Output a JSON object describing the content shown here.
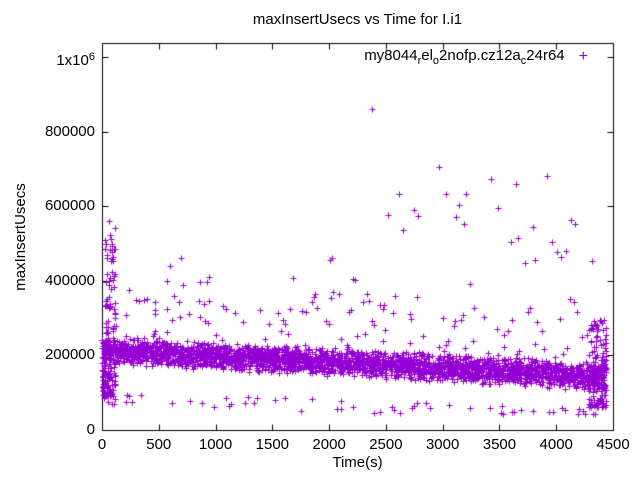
{
  "chart_data": {
    "type": "scatter",
    "title": "maxInsertUsecs vs Time for I.i1",
    "xlabel": "Time(s)",
    "ylabel": "maxInsertUsecs",
    "xlim": [
      0,
      4500
    ],
    "ylim": [
      0,
      1000000
    ],
    "xticks": [
      0,
      500,
      1000,
      1500,
      2000,
      2500,
      3000,
      3500,
      4000,
      4500
    ],
    "yticks": [
      {
        "v": 0,
        "label": "0"
      },
      {
        "v": 200000,
        "label": "200000"
      },
      {
        "v": 400000,
        "label": "400000"
      },
      {
        "v": 600000,
        "label": "600000"
      },
      {
        "v": 800000,
        "label": "800000"
      },
      {
        "v": 1000000,
        "label": "1x10^6"
      }
    ],
    "grid": false,
    "legend_position": "top-right-inside",
    "frame": "full border with mirrored inward ticks",
    "summary": "Dense noisy band of per-interval max insert latency (~100k-270k usecs) slowly declining from ~215k at t=0 to ~145k at t=4400s; an early spike cluster near t=50-100s up to ~560k; scattered high outliers 450k-860k mostly after t=2300s, peak ~861k at t~2380s.",
    "series": [
      {
        "name": "my8044_rel_o2nofp.cz12a_c24r64",
        "name_segments": [
          {
            "text": "my8044"
          },
          {
            "text": "r",
            "sub": true
          },
          {
            "text": "el"
          },
          {
            "text": "o",
            "sub": true
          },
          {
            "text": "2nofp.cz12a"
          },
          {
            "text": "c",
            "sub": true
          },
          {
            "text": "24r64"
          }
        ],
        "color": "#9400d3",
        "marker": "plus",
        "marker_glyph": "+",
        "outliers": [
          [
            62,
            559000
          ],
          [
            80,
            512000
          ],
          [
            88,
            478000
          ],
          [
            95,
            452000
          ],
          [
            326,
            346000
          ],
          [
            396,
            351000
          ],
          [
            467,
            343000
          ],
          [
            634,
            358000
          ],
          [
            678,
            343000
          ],
          [
            696,
            461000
          ],
          [
            854,
            346000
          ],
          [
            863,
            397000
          ],
          [
            925,
            396000
          ],
          [
            942,
            345000
          ],
          [
            1092,
            325000
          ],
          [
            1391,
            321000
          ],
          [
            1655,
            324000
          ],
          [
            1761,
            318000
          ],
          [
            1845,
            342000
          ],
          [
            2008,
            457000
          ],
          [
            2025,
            461000
          ],
          [
            2090,
            364000
          ],
          [
            2210,
            404000
          ],
          [
            2228,
            401000
          ],
          [
            2298,
            342000
          ],
          [
            2378,
            861000
          ],
          [
            2448,
            334000
          ],
          [
            2483,
            334000
          ],
          [
            2518,
            576000
          ],
          [
            2615,
            634000
          ],
          [
            2650,
            536000
          ],
          [
            2747,
            591000
          ],
          [
            2782,
            575000
          ],
          [
            2968,
            706000
          ],
          [
            3029,
            634000
          ],
          [
            3117,
            570000
          ],
          [
            3143,
            604000
          ],
          [
            3187,
            551000
          ],
          [
            3205,
            634000
          ],
          [
            3426,
            674000
          ],
          [
            3487,
            596000
          ],
          [
            3601,
            505000
          ],
          [
            3646,
            660000
          ],
          [
            3663,
            516000
          ],
          [
            3724,
            447000
          ],
          [
            3795,
            543000
          ],
          [
            3812,
            457000
          ],
          [
            3919,
            682000
          ],
          [
            3963,
            505000
          ],
          [
            4007,
            476000
          ],
          [
            4042,
            463000
          ],
          [
            4086,
            481000
          ],
          [
            4130,
            564000
          ],
          [
            4165,
            551000
          ],
          [
            4314,
            452000
          ]
        ],
        "generated": {
          "seed": 20240805,
          "band": {
            "count": 3000,
            "t_min": 5,
            "t_max": 4435,
            "center_start": 215000,
            "center_end": 143000,
            "spread": 40000,
            "floor_start": 103000,
            "floor_end": 58000,
            "up_prob": 0.085,
            "up_power": 2.4,
            "up_max": 215000,
            "low_prob": 0.02,
            "low_drop": 35000,
            "v_min_clamp": 42000,
            "v_max_clamp": 990000
          },
          "spike": {
            "count": 120,
            "t_min": 25,
            "t_max": 118,
            "v_min": 92000,
            "v_max": 545000,
            "power": 2.1
          },
          "left_edge": {
            "count": 45,
            "t_min": 2,
            "t_max": 25,
            "v_min": 85000,
            "v_max": 245000
          },
          "end_cluster": {
            "count": 130,
            "t_min": 4285,
            "t_max": 4440,
            "v_min": 62000,
            "v_max": 295000,
            "power": 1.7
          }
        }
      }
    ],
    "colors": {
      "marker": "#9400d3",
      "axis": "#000000",
      "background": "#ffffff",
      "text": "#000000"
    }
  }
}
